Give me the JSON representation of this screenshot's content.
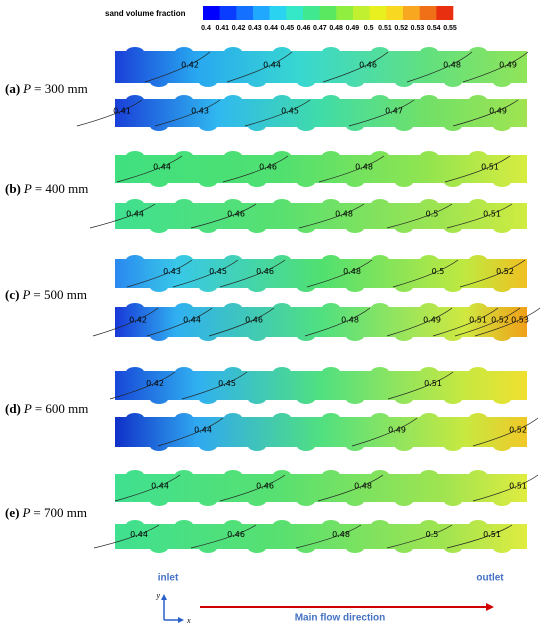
{
  "colorbar": {
    "title": "sand volume fraction",
    "labels": [
      "0.4",
      "0.41",
      "0.42",
      "0.43",
      "0.44",
      "0.45",
      "0.46",
      "0.47",
      "0.48",
      "0.49",
      "0.5",
      "0.51",
      "0.52",
      "0.53",
      "0.54",
      "0.55"
    ]
  },
  "panels": [
    {
      "letter": "(a)",
      "symbol": "P",
      "rest": "= 300 mm",
      "strips": [
        [
          "0.42",
          "0.44",
          "0.46",
          "0.48",
          "0.49"
        ],
        [
          "0.41",
          "0.43",
          "0.45",
          "0.47",
          "0.49"
        ]
      ]
    },
    {
      "letter": "(b)",
      "symbol": "P",
      "rest": "= 400 mm",
      "strips": [
        [
          "0.44",
          "0.46",
          "0.48",
          "0.51"
        ],
        [
          "0.44",
          "0.46",
          "0.48",
          "0.5",
          "0.51"
        ]
      ]
    },
    {
      "letter": "(c)",
      "symbol": "P",
      "rest": "= 500 mm",
      "strips": [
        [
          "0.43",
          "0.45",
          "0.46",
          "0.48",
          "0.5",
          "0.52"
        ],
        [
          "0.42",
          "0.44",
          "0.46",
          "0.48",
          "0.49",
          "0.51",
          "0.52",
          "0.53"
        ]
      ]
    },
    {
      "letter": "(d)",
      "symbol": "P",
      "rest": "= 600 mm",
      "strips": [
        [
          "0.42",
          "0.45",
          "0.51"
        ],
        [
          "0.44",
          "0.49",
          "0.52"
        ]
      ]
    },
    {
      "letter": "(e)",
      "symbol": "P",
      "rest": "= 700 mm",
      "strips": [
        [
          "0.44",
          "0.46",
          "0.48",
          "0.51"
        ],
        [
          "0.44",
          "0.46",
          "0.48",
          "0.5",
          "0.51"
        ]
      ]
    }
  ],
  "footer": {
    "inlet": "inlet",
    "outlet": "outlet",
    "axis_y": "y",
    "axis_x": "x",
    "flow": "Main flow direction"
  }
}
